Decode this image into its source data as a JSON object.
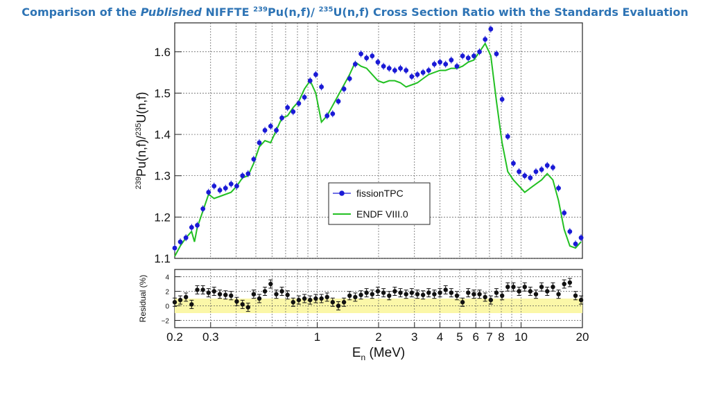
{
  "title": {
    "part1": "Comparison of the ",
    "part2": "Published",
    "part3": " NIFFTE ",
    "sup1": "239",
    "part4": "Pu(n,f)/ ",
    "sup2": "235",
    "part5": "U(n,f) Cross Section Ratio with the Standards Evaluation"
  },
  "colors": {
    "title": "#2e74b5",
    "fissionTPC": "#1a1ad6",
    "endf": "#22c022",
    "band": "#fbf7a8",
    "residual": "#111111"
  },
  "chart_data": [
    {
      "type": "scatter",
      "xscale": "log",
      "xlim": [
        0.2,
        20
      ],
      "ylim": [
        1.1,
        1.67
      ],
      "ylabel": {
        "sup1": "239",
        "base1": "Pu(n,f)/",
        "sup2": "235",
        "base2": "U(n,f)"
      },
      "yticks": [
        1.1,
        1.2,
        1.3,
        1.4,
        1.5,
        1.6
      ],
      "ytick_labels": [
        "1.1",
        "1.2",
        "1.3",
        "1.4",
        "1.5",
        "1.6"
      ],
      "grid": true,
      "legend_position": "center-right",
      "legend": [
        "fissionTPC",
        "ENDF VIII.0"
      ],
      "series": [
        {
          "name": "fissionTPC",
          "style": "markers",
          "x": [
            0.2,
            0.213,
            0.227,
            0.242,
            0.258,
            0.275,
            0.293,
            0.312,
            0.333,
            0.355,
            0.378,
            0.403,
            0.43,
            0.458,
            0.488,
            0.52,
            0.554,
            0.591,
            0.63,
            0.671,
            0.715,
            0.762,
            0.812,
            0.866,
            0.923,
            0.984,
            1.049,
            1.118,
            1.191,
            1.27,
            1.353,
            1.442,
            1.537,
            1.639,
            1.746,
            1.861,
            1.984,
            2.115,
            2.254,
            2.402,
            2.56,
            2.729,
            2.909,
            3.1,
            3.305,
            3.522,
            3.754,
            4.002,
            4.265,
            4.546,
            4.845,
            5.165,
            5.505,
            5.867,
            6.254,
            6.666,
            7.105,
            7.573,
            8.072,
            8.603,
            9.17,
            9.774,
            10.42,
            11.1,
            11.83,
            12.61,
            13.44,
            14.33,
            15.27,
            16.28,
            17.35,
            18.5,
            19.7
          ],
          "y": [
            1.125,
            1.14,
            1.15,
            1.175,
            1.18,
            1.22,
            1.26,
            1.275,
            1.265,
            1.27,
            1.28,
            1.275,
            1.3,
            1.305,
            1.34,
            1.38,
            1.41,
            1.42,
            1.41,
            1.44,
            1.465,
            1.455,
            1.475,
            1.49,
            1.53,
            1.545,
            1.515,
            1.445,
            1.45,
            1.48,
            1.51,
            1.535,
            1.57,
            1.595,
            1.585,
            1.59,
            1.575,
            1.565,
            1.56,
            1.555,
            1.56,
            1.555,
            1.54,
            1.545,
            1.55,
            1.555,
            1.57,
            1.575,
            1.57,
            1.58,
            1.565,
            1.59,
            1.585,
            1.59,
            1.6,
            1.63,
            1.655,
            1.595,
            1.485,
            1.395,
            1.33,
            1.31,
            1.3,
            1.295,
            1.31,
            1.315,
            1.325,
            1.32,
            1.27,
            1.21,
            1.165,
            1.135,
            1.15
          ]
        },
        {
          "name": "ENDF VIII.0",
          "style": "line",
          "x": [
            0.2,
            0.213,
            0.227,
            0.242,
            0.25,
            0.258,
            0.275,
            0.293,
            0.312,
            0.333,
            0.355,
            0.378,
            0.403,
            0.43,
            0.458,
            0.488,
            0.52,
            0.554,
            0.591,
            0.63,
            0.671,
            0.715,
            0.762,
            0.812,
            0.866,
            0.923,
            0.984,
            1.049,
            1.118,
            1.191,
            1.27,
            1.353,
            1.442,
            1.537,
            1.639,
            1.746,
            1.861,
            1.984,
            2.115,
            2.254,
            2.402,
            2.56,
            2.729,
            2.909,
            3.1,
            3.305,
            3.522,
            3.754,
            4.002,
            4.265,
            4.546,
            4.845,
            5.165,
            5.505,
            5.867,
            6.254,
            6.666,
            7.105,
            7.573,
            8.072,
            8.603,
            9.17,
            9.774,
            10.42,
            11.1,
            11.83,
            12.61,
            13.44,
            14.33,
            15.27,
            16.28,
            17.35,
            18.5,
            19.7
          ],
          "y": [
            1.105,
            1.13,
            1.15,
            1.165,
            1.14,
            1.175,
            1.215,
            1.255,
            1.245,
            1.25,
            1.255,
            1.26,
            1.275,
            1.295,
            1.3,
            1.33,
            1.37,
            1.385,
            1.38,
            1.41,
            1.44,
            1.445,
            1.465,
            1.48,
            1.51,
            1.53,
            1.5,
            1.43,
            1.445,
            1.47,
            1.495,
            1.52,
            1.545,
            1.575,
            1.565,
            1.56,
            1.545,
            1.53,
            1.525,
            1.53,
            1.53,
            1.525,
            1.515,
            1.52,
            1.525,
            1.535,
            1.545,
            1.55,
            1.555,
            1.555,
            1.56,
            1.56,
            1.565,
            1.575,
            1.58,
            1.6,
            1.62,
            1.59,
            1.48,
            1.38,
            1.31,
            1.29,
            1.275,
            1.26,
            1.27,
            1.28,
            1.29,
            1.305,
            1.29,
            1.24,
            1.17,
            1.13,
            1.125,
            1.14
          ]
        }
      ]
    },
    {
      "type": "scatter",
      "xscale": "log",
      "xlim": [
        0.2,
        20
      ],
      "ylim": [
        -3,
        5
      ],
      "ylabel": "Residual (%)",
      "xlabel": {
        "base": "E",
        "sub": "n",
        "rest": " (MeV)"
      },
      "yticks": [
        -2,
        0,
        2,
        4
      ],
      "ytick_labels": [
        "−2",
        "0",
        "2",
        "4"
      ],
      "xticks": [
        0.2,
        0.3,
        1,
        2,
        3,
        4,
        5,
        6,
        7,
        8,
        10,
        20
      ],
      "xtick_labels": [
        "0.2",
        "0.3",
        "1",
        "2",
        "3",
        "4",
        "5",
        "6",
        "7",
        "8",
        "10",
        "20"
      ],
      "band": [
        -1,
        1
      ],
      "series": [
        {
          "name": "",
          "style": "markers",
          "x": [
            0.2,
            0.213,
            0.227,
            0.242,
            0.258,
            0.275,
            0.293,
            0.312,
            0.333,
            0.355,
            0.378,
            0.403,
            0.43,
            0.458,
            0.488,
            0.52,
            0.554,
            0.591,
            0.63,
            0.671,
            0.715,
            0.762,
            0.812,
            0.866,
            0.923,
            0.984,
            1.049,
            1.118,
            1.191,
            1.27,
            1.353,
            1.442,
            1.537,
            1.639,
            1.746,
            1.861,
            1.984,
            2.115,
            2.254,
            2.402,
            2.56,
            2.729,
            2.909,
            3.1,
            3.305,
            3.522,
            3.754,
            4.002,
            4.265,
            4.546,
            4.845,
            5.165,
            5.505,
            5.867,
            6.254,
            6.666,
            7.105,
            7.573,
            8.072,
            8.603,
            9.17,
            9.774,
            10.42,
            11.1,
            11.83,
            12.61,
            13.44,
            14.33,
            15.27,
            16.28,
            17.35,
            18.5,
            19.7
          ],
          "y": [
            0.5,
            0.8,
            1.2,
            0.2,
            2.2,
            2.2,
            1.8,
            2.0,
            1.6,
            1.5,
            1.4,
            0.6,
            0.2,
            -0.2,
            1.6,
            1.0,
            2.0,
            3.0,
            1.6,
            2.0,
            1.5,
            0.5,
            0.8,
            1.0,
            0.8,
            1.0,
            1.0,
            1.2,
            0.5,
            0.0,
            0.5,
            1.4,
            1.2,
            1.5,
            1.8,
            1.6,
            2.0,
            1.8,
            1.4,
            2.0,
            1.8,
            1.6,
            1.8,
            1.6,
            1.5,
            1.8,
            1.6,
            1.8,
            2.2,
            1.8,
            1.4,
            0.5,
            1.8,
            1.6,
            1.6,
            1.2,
            0.8,
            1.8,
            1.4,
            2.6,
            2.6,
            2.0,
            2.6,
            2.0,
            1.6,
            2.6,
            2.0,
            2.6,
            1.6,
            3.0,
            3.2,
            1.4,
            0.8
          ]
        }
      ]
    }
  ]
}
